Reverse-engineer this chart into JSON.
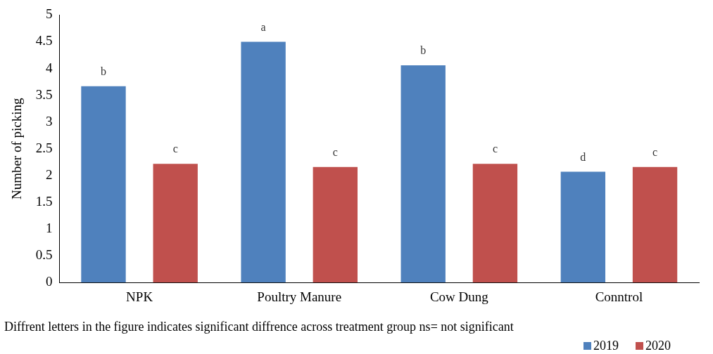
{
  "chart_data": {
    "type": "bar",
    "ylabel": "Number of picking",
    "categories": [
      "NPK",
      "Poultry Manure",
      "Cow Dung",
      "Conntrol"
    ],
    "series": [
      {
        "name": "2019",
        "color": "#4f81bd",
        "values": [
          3.67,
          4.5,
          4.06,
          2.07
        ],
        "value_labels": [
          "b",
          "a",
          "b",
          "d"
        ]
      },
      {
        "name": "2020",
        "color": "#c0504d",
        "values": [
          2.22,
          2.16,
          2.22,
          2.16
        ],
        "value_labels": [
          "c",
          "c",
          "c",
          "c"
        ]
      }
    ],
    "ylim": [
      0,
      5
    ],
    "yticks": [
      0,
      0.5,
      1,
      1.5,
      2,
      2.5,
      3,
      3.5,
      4,
      4.5,
      5
    ],
    "grid": false,
    "legend": "bottom right",
    "annotations": [
      "Diffrent letters in the figure indicates significant diffrence across treatment group ns= not significant"
    ]
  }
}
